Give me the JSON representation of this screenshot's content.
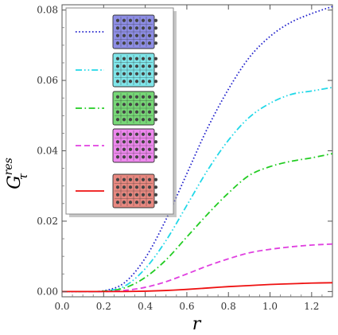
{
  "chart_data": {
    "type": "line",
    "ylabel": "G",
    "ylabel_super": "res",
    "ylabel_sub": "τ",
    "xlabel": "r",
    "xlim": [
      0.0,
      1.3
    ],
    "ylim": [
      -0.0015,
      0.0815
    ],
    "x_ticks": [
      0.0,
      0.2,
      0.4,
      0.6,
      0.8,
      1.0,
      1.2
    ],
    "x_tick_labels": [
      "0.0",
      "0.2",
      "0.4",
      "0.6",
      "0.8",
      "1.0",
      "1.2"
    ],
    "y_ticks": [
      0.0,
      0.02,
      0.04,
      0.06,
      0.08
    ],
    "y_tick_labels": [
      "0.00",
      "0.02",
      "0.04",
      "0.06",
      "0.08"
    ],
    "grid": false,
    "legend_position": "top-left",
    "series": [
      {
        "style": "dotted",
        "color": "#2222cc",
        "icon_fill": "#8e8ee6",
        "x": [
          0.0,
          0.1,
          0.2,
          0.3,
          0.4,
          0.5,
          0.6,
          0.7,
          0.8,
          0.9,
          1.0,
          1.1,
          1.2,
          1.3
        ],
        "y": [
          0.0,
          0.0,
          0.0002,
          0.0025,
          0.0095,
          0.0205,
          0.0335,
          0.0465,
          0.0575,
          0.0665,
          0.0725,
          0.0765,
          0.079,
          0.081
        ]
      },
      {
        "style": "dash-dot-dot",
        "color": "#22d8e8",
        "icon_fill": "#7fe6ea",
        "x": [
          0.0,
          0.1,
          0.2,
          0.3,
          0.4,
          0.5,
          0.6,
          0.7,
          0.8,
          0.9,
          1.0,
          1.1,
          1.2,
          1.3
        ],
        "y": [
          0.0,
          0.0,
          0.0001,
          0.0015,
          0.0065,
          0.0145,
          0.0245,
          0.0345,
          0.043,
          0.0495,
          0.0535,
          0.056,
          0.057,
          0.058
        ]
      },
      {
        "style": "dash-dot",
        "color": "#22cc22",
        "icon_fill": "#77d877",
        "x": [
          0.0,
          0.1,
          0.2,
          0.3,
          0.4,
          0.5,
          0.6,
          0.7,
          0.8,
          0.9,
          1.0,
          1.1,
          1.2,
          1.3
        ],
        "y": [
          0.0,
          0.0,
          0.0001,
          0.001,
          0.004,
          0.009,
          0.0155,
          0.022,
          0.028,
          0.033,
          0.0355,
          0.037,
          0.038,
          0.0392
        ]
      },
      {
        "style": "dashed",
        "color": "#e040e0",
        "icon_fill": "#ee88ee",
        "x": [
          0.0,
          0.1,
          0.2,
          0.3,
          0.4,
          0.5,
          0.6,
          0.7,
          0.8,
          0.9,
          1.0,
          1.1,
          1.2,
          1.3
        ],
        "y": [
          0.0,
          0.0,
          0.0,
          0.0003,
          0.0012,
          0.0028,
          0.005,
          0.0073,
          0.0093,
          0.011,
          0.012,
          0.0127,
          0.0132,
          0.0135
        ]
      },
      {
        "style": "solid",
        "color": "#ee1111",
        "icon_fill": "#e88880",
        "x": [
          0.0,
          0.1,
          0.2,
          0.3,
          0.4,
          0.5,
          0.6,
          0.7,
          0.8,
          0.9,
          1.0,
          1.1,
          1.2,
          1.3
        ],
        "y": [
          0.0,
          0.0,
          0.0,
          0.0,
          0.0001,
          0.0003,
          0.0006,
          0.001,
          0.0014,
          0.0017,
          0.002,
          0.0022,
          0.0024,
          0.0025
        ]
      }
    ]
  }
}
